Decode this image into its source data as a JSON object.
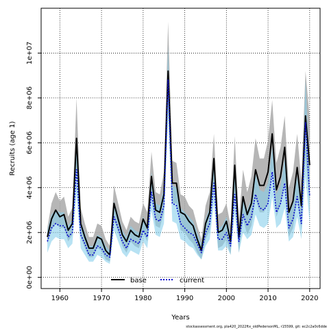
{
  "chart_data": {
    "type": "line",
    "xlabel": "Years",
    "ylabel": "Recruits (age 1)",
    "xlim": [
      1955.5,
      2022.5
    ],
    "ylim": [
      -500000,
      12000000
    ],
    "xticks": [
      1960,
      1970,
      1980,
      1990,
      2000,
      2010,
      2020
    ],
    "xtick_labels": [
      "1960",
      "1970",
      "1980",
      "1990",
      "2000",
      "2010",
      "2020"
    ],
    "yticks": [
      0,
      2000000,
      4000000,
      6000000,
      8000000,
      10000000
    ],
    "ytick_labels": [
      "0e+00",
      "2e+06",
      "4e+06",
      "6e+06",
      "8e+06",
      "1e+07"
    ],
    "grid": true,
    "legend_position": "bottom-center",
    "x": [
      1957,
      1958,
      1959,
      1960,
      1961,
      1962,
      1963,
      1964,
      1965,
      1966,
      1967,
      1968,
      1969,
      1970,
      1971,
      1972,
      1973,
      1974,
      1975,
      1976,
      1977,
      1978,
      1979,
      1980,
      1981,
      1982,
      1983,
      1984,
      1985,
      1986,
      1987,
      1988,
      1989,
      1990,
      1991,
      1992,
      1993,
      1994,
      1995,
      1996,
      1997,
      1998,
      1999,
      2000,
      2001,
      2002,
      2003,
      2004,
      2005,
      2006,
      2007,
      2008,
      2009,
      2010,
      2011,
      2012,
      2013,
      2014,
      2015,
      2016,
      2017,
      2018,
      2019,
      2020
    ],
    "series": [
      {
        "name": "base",
        "color": "#000000",
        "band_color": "#a9a9a9",
        "values": [
          1800000,
          2600000,
          3000000,
          2700000,
          2800000,
          2100000,
          2400000,
          6200000,
          2400000,
          1800000,
          1300000,
          1300000,
          1800000,
          1700000,
          1200000,
          1000000,
          3300000,
          2600000,
          1900000,
          1600000,
          2100000,
          1900000,
          1800000,
          2600000,
          2200000,
          4500000,
          3000000,
          2900000,
          3700000,
          9200000,
          4200000,
          4200000,
          2900000,
          2800000,
          2500000,
          2300000,
          1700000,
          1200000,
          2400000,
          2900000,
          5300000,
          2000000,
          2100000,
          2500000,
          1600000,
          5000000,
          1800000,
          3600000,
          2800000,
          3300000,
          4800000,
          4100000,
          4100000,
          4700000,
          6400000,
          3900000,
          4500000,
          5800000,
          2900000,
          3400000,
          4900000,
          3200000,
          7200000,
          5000000
        ],
        "lower": [
          1500000,
          2100000,
          2400000,
          2200000,
          2200000,
          1600000,
          1900000,
          4900000,
          1800000,
          1300000,
          900000,
          900000,
          1300000,
          1200000,
          800000,
          700000,
          2600000,
          2000000,
          1400000,
          1100000,
          1600000,
          1400000,
          1300000,
          2000000,
          1600000,
          3600000,
          2300000,
          2200000,
          2900000,
          7700000,
          3300000,
          3300000,
          2100000,
          2000000,
          1700000,
          1500000,
          1100000,
          800000,
          1700000,
          2100000,
          4200000,
          1300000,
          1400000,
          1700000,
          1000000,
          3800000,
          1100000,
          2600000,
          1900000,
          2300000,
          3500000,
          2900000,
          2900000,
          3300000,
          4900000,
          2700000,
          3200000,
          4300000,
          1800000,
          2200000,
          3500000,
          2100000,
          5400000,
          3300000
        ],
        "upper": [
          2200000,
          3300000,
          3800000,
          3400000,
          3600000,
          2700000,
          3100000,
          8000000,
          3100000,
          2400000,
          1800000,
          1800000,
          2400000,
          2300000,
          1700000,
          1400000,
          4100000,
          3300000,
          2500000,
          2100000,
          2700000,
          2500000,
          2400000,
          3300000,
          2900000,
          5600000,
          3800000,
          3700000,
          4700000,
          11400000,
          5200000,
          5100000,
          3700000,
          3600000,
          3200000,
          3000000,
          2300000,
          1700000,
          3200000,
          3800000,
          6400000,
          2800000,
          2900000,
          3300000,
          2300000,
          6300000,
          2600000,
          4800000,
          3800000,
          4500000,
          6200000,
          5300000,
          5300000,
          6100000,
          7900000,
          5100000,
          5800000,
          7200000,
          4000000,
          4700000,
          6400000,
          4300000,
          9200000,
          7100000
        ]
      },
      {
        "name": "current",
        "color": "#0000cd",
        "band_color": "#87ceeb",
        "values": [
          1600000,
          2200000,
          2400000,
          2300000,
          2300000,
          1800000,
          2000000,
          4800000,
          1900000,
          1500000,
          1000000,
          1000000,
          1400000,
          1300000,
          1000000,
          900000,
          2700000,
          2200000,
          1600000,
          1300000,
          1700000,
          1600000,
          1500000,
          2100000,
          1800000,
          3800000,
          2600000,
          2500000,
          3200000,
          8800000,
          3300000,
          3200000,
          2400000,
          2200000,
          2000000,
          1900000,
          1500000,
          1100000,
          2000000,
          2400000,
          4200000,
          1700000,
          1700000,
          2000000,
          1400000,
          3700000,
          1600000,
          2800000,
          2300000,
          2700000,
          3700000,
          3100000,
          3000000,
          3300000,
          4700000,
          2900000,
          3300000,
          4200000,
          2200000,
          2600000,
          3600000,
          2400000,
          6900000,
          3600000
        ],
        "lower": [
          1100000,
          1600000,
          1800000,
          1700000,
          1700000,
          1300000,
          1500000,
          3700000,
          1300000,
          1000000,
          700000,
          700000,
          1000000,
          900000,
          700000,
          600000,
          2100000,
          1600000,
          1100000,
          900000,
          1200000,
          1100000,
          1000000,
          1600000,
          1300000,
          3000000,
          1900000,
          1800000,
          2400000,
          7100000,
          2500000,
          2400000,
          1700000,
          1600000,
          1400000,
          1300000,
          1000000,
          800000,
          1400000,
          1700000,
          3300000,
          1200000,
          1200000,
          1400000,
          1000000,
          2800000,
          1100000,
          2000000,
          1700000,
          1900000,
          2800000,
          2300000,
          2200000,
          2400000,
          3600000,
          2200000,
          2400000,
          3100000,
          1600000,
          1800000,
          2700000,
          1700000,
          4500000,
          2400000
        ],
        "upper": [
          2100000,
          2800000,
          3000000,
          2900000,
          2900000,
          2300000,
          2600000,
          6000000,
          2500000,
          2000000,
          1400000,
          1400000,
          1900000,
          1800000,
          1400000,
          1200000,
          3400000,
          2800000,
          2100000,
          1800000,
          2300000,
          2100000,
          2000000,
          2700000,
          2300000,
          4700000,
          3300000,
          3200000,
          4000000,
          10300000,
          4100000,
          4000000,
          3100000,
          2900000,
          2700000,
          2500000,
          2000000,
          1500000,
          2600000,
          3100000,
          5100000,
          2200000,
          2300000,
          2700000,
          1900000,
          4600000,
          2200000,
          3600000,
          3000000,
          3500000,
          4600000,
          3900000,
          3800000,
          4200000,
          5800000,
          3700000,
          4100000,
          5300000,
          2900000,
          3400000,
          4500000,
          3100000,
          8800000,
          4800000
        ]
      }
    ]
  },
  "footer": {
    "text": "stockassessment.org, pla420_2022ftx_oldPedersonML, r15599, git: ec2c2a0c6dde"
  }
}
